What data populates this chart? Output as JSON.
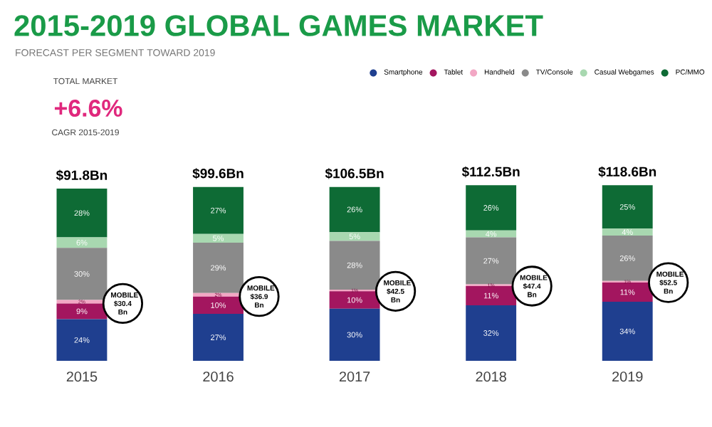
{
  "chart_data": {
    "type": "bar",
    "stacked": true,
    "title": "2015-2019 GLOBAL GAMES MARKET",
    "subtitle": "FORECAST PER SEGMENT TOWARD 2019",
    "categories": [
      "2015",
      "2016",
      "2017",
      "2018",
      "2019"
    ],
    "series": [
      {
        "name": "Smartphone",
        "color": "#1f3f8f",
        "values": [
          24,
          27,
          30,
          32,
          34
        ],
        "value_labels": [
          "24%",
          "27%",
          "30%",
          "32%",
          "34%"
        ]
      },
      {
        "name": "Tablet",
        "color": "#a3165f",
        "values": [
          9,
          10,
          10,
          11,
          11
        ],
        "value_labels": [
          "9%",
          "10%",
          "10%",
          "11%",
          "11%"
        ]
      },
      {
        "name": "Handheld",
        "color": "#f2a7c4",
        "values": [
          2,
          2,
          1,
          1,
          1
        ],
        "value_labels": [
          "2%",
          "2%",
          "1%",
          "1%",
          "1%"
        ]
      },
      {
        "name": "TV/Console",
        "color": "#8a8a8a",
        "values": [
          30,
          29,
          28,
          27,
          26
        ],
        "value_labels": [
          "30%",
          "29%",
          "28%",
          "27%",
          "26%"
        ]
      },
      {
        "name": "Casual Webgames",
        "color": "#a8d8b0",
        "values": [
          6,
          5,
          5,
          4,
          4
        ],
        "value_labels": [
          "6%",
          "5%",
          "5%",
          "4%",
          "4%"
        ]
      },
      {
        "name": "PC/MMO",
        "color": "#0e6b35",
        "values": [
          28,
          27,
          26,
          26,
          25
        ],
        "value_labels": [
          "28%",
          "27%",
          "26%",
          "26%",
          "25%"
        ]
      }
    ],
    "annotations": [
      "TOTAL MARKET",
      "+6.6%",
      "CAGR 2015-2019",
      {
        "text": "$91.8Bn",
        "x": "2015",
        "y": 99
      },
      {
        "text": "$99.6Bn",
        "x": "2016",
        "y": 100
      },
      {
        "text": "$106.5Bn",
        "x": "2017",
        "y": 100
      },
      {
        "text": "$112.5Bn",
        "x": "2018",
        "y": 101
      },
      {
        "text": "$118.6Bn",
        "x": "2019",
        "y": 101
      },
      "MOBILE $30.4 Bn",
      "MOBILE $36.9 Bn",
      "MOBILE $42.5 Bn",
      "MOBILE $47.4 Bn",
      "MOBILE $52.5 Bn"
    ],
    "legend": "top right",
    "marker": "circle"
  }
}
